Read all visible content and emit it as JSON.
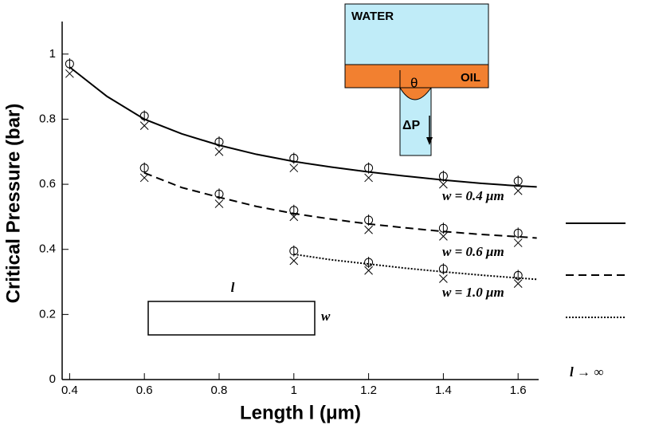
{
  "chart_data": {
    "type": "line",
    "ylabel": "Critical Pressure (bar)",
    "xlabel": "Length l (μm)",
    "xlim": [
      0.38,
      1.655
    ],
    "ylim": [
      0,
      1.1
    ],
    "xticks": [
      0.4,
      0.6,
      0.8,
      1,
      1.2,
      1.4,
      1.6
    ],
    "yticks": [
      0,
      0.2,
      0.4,
      0.6,
      0.8,
      1
    ],
    "legend_title": "l → ∞",
    "series": [
      {
        "name": "w = 0.4 μm",
        "color": "#000000",
        "style": "solid",
        "x": [
          0.4,
          0.5,
          0.6,
          0.7,
          0.8,
          0.9,
          1.0,
          1.1,
          1.2,
          1.3,
          1.4,
          1.5,
          1.6,
          1.65
        ],
        "values": [
          0.96,
          0.87,
          0.8,
          0.755,
          0.72,
          0.692,
          0.67,
          0.653,
          0.638,
          0.625,
          0.613,
          0.603,
          0.595,
          0.592
        ],
        "marker_x": [
          0.4,
          0.6,
          0.8,
          1.0,
          1.2,
          1.4,
          1.6
        ],
        "circle_values": [
          0.97,
          0.81,
          0.73,
          0.68,
          0.65,
          0.625,
          0.61
        ],
        "cross_values": [
          0.94,
          0.78,
          0.7,
          0.65,
          0.62,
          0.6,
          0.58
        ]
      },
      {
        "name": "w = 0.6 μm",
        "color": "#000000",
        "style": "dashed",
        "x": [
          0.6,
          0.7,
          0.8,
          0.9,
          1.0,
          1.1,
          1.2,
          1.3,
          1.4,
          1.5,
          1.6,
          1.65
        ],
        "values": [
          0.635,
          0.59,
          0.56,
          0.532,
          0.51,
          0.493,
          0.478,
          0.466,
          0.455,
          0.446,
          0.439,
          0.435
        ],
        "marker_x": [
          0.6,
          0.8,
          1.0,
          1.2,
          1.4,
          1.6
        ],
        "circle_values": [
          0.65,
          0.57,
          0.52,
          0.49,
          0.465,
          0.45
        ],
        "cross_values": [
          0.62,
          0.54,
          0.5,
          0.46,
          0.44,
          0.42
        ]
      },
      {
        "name": "w = 1.0 μm",
        "color": "#000000",
        "style": "dotted",
        "x": [
          1.0,
          1.1,
          1.2,
          1.3,
          1.4,
          1.5,
          1.6,
          1.65
        ],
        "values": [
          0.385,
          0.368,
          0.355,
          0.342,
          0.331,
          0.321,
          0.312,
          0.308
        ],
        "marker_x": [
          1.0,
          1.2,
          1.4,
          1.6
        ],
        "circle_values": [
          0.395,
          0.36,
          0.34,
          0.32
        ],
        "cross_values": [
          0.365,
          0.335,
          0.31,
          0.295
        ]
      }
    ],
    "inset": {
      "water": "WATER",
      "oil": "OIL",
      "angle": "θ",
      "pressure": "ΔP"
    },
    "sketch": {
      "length": "l",
      "width": "w"
    }
  }
}
